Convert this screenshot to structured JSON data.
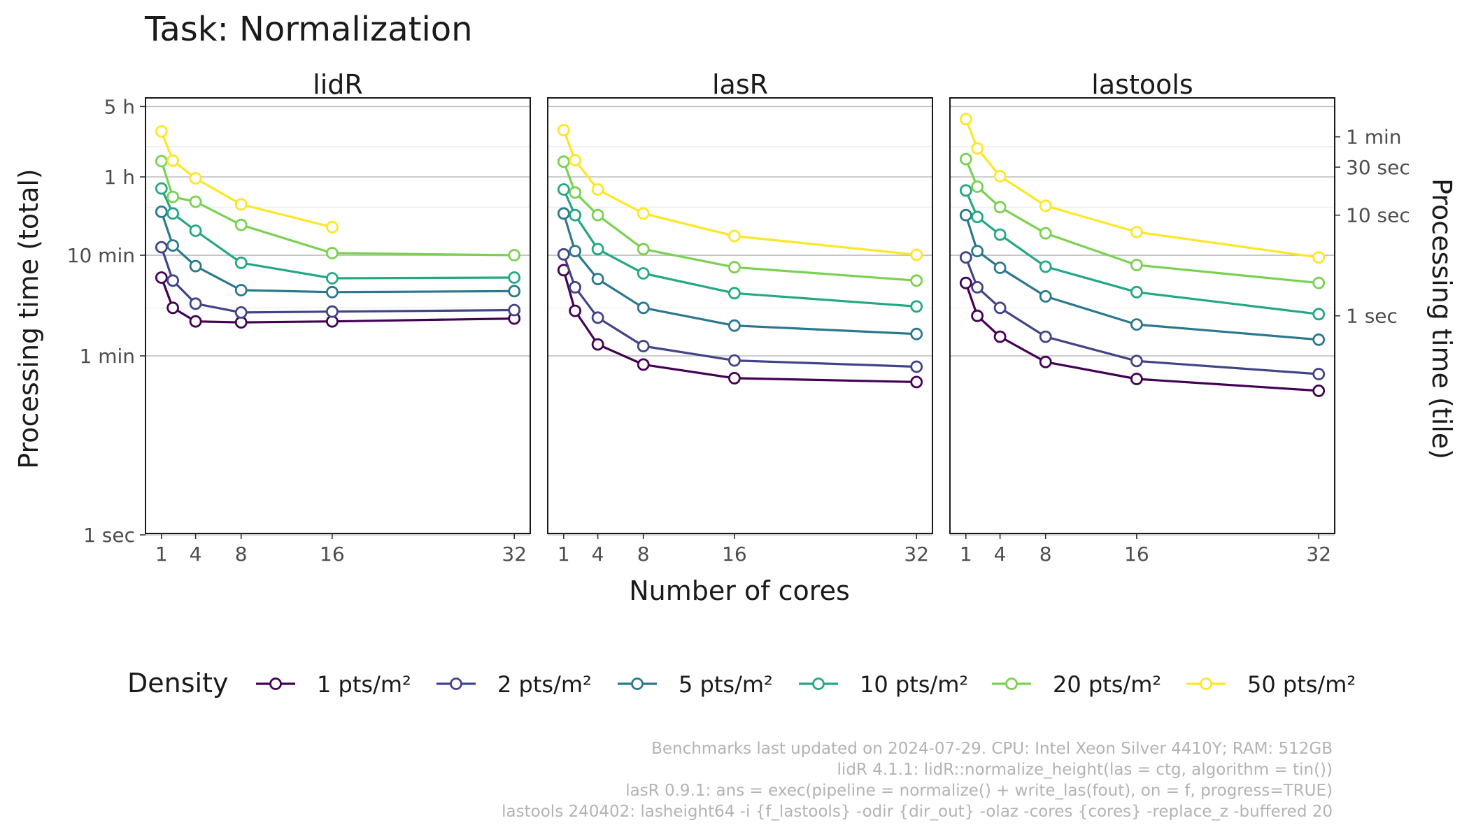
{
  "chart_data": {
    "type": "line",
    "title": "Task: Normalization",
    "xlabel": "Number of cores",
    "ylabel_left": "Processing time (total)",
    "ylabel_right": "Processing time (tile)",
    "y_scale": "log",
    "x_ticks": [
      1,
      4,
      8,
      16,
      32
    ],
    "y_ticks_left": [
      "5 h",
      "1 h",
      "10 min",
      "1 min",
      "1 sec"
    ],
    "y_ticks_right": [
      "1 min",
      "30 sec",
      "10 sec",
      "1 sec"
    ],
    "legend_title": "Density",
    "legend_position": "bottom",
    "grid": true,
    "facets": [
      {
        "name": "lidR",
        "series": [
          {
            "name": "1 pts/m²",
            "x": [
              1,
              2,
              4,
              8,
              16,
              32
            ],
            "y_minutes": [
              6.0,
              3.0,
              2.2,
              2.15,
              2.2,
              2.35
            ]
          },
          {
            "name": "2 pts/m²",
            "x": [
              1,
              2,
              4,
              8,
              16,
              32
            ],
            "y_minutes": [
              12.0,
              5.6,
              3.3,
              2.7,
              2.75,
              2.85
            ]
          },
          {
            "name": "5 pts/m²",
            "x": [
              1,
              2,
              4,
              8,
              16,
              32
            ],
            "y_minutes": [
              27.0,
              12.5,
              7.8,
              4.5,
              4.3,
              4.4
            ]
          },
          {
            "name": "10 pts/m²",
            "x": [
              1,
              2,
              4,
              8,
              16,
              32
            ],
            "y_minutes": [
              46.0,
              26.0,
              17.5,
              8.4,
              5.9,
              6.0
            ]
          },
          {
            "name": "20 pts/m²",
            "x": [
              1,
              2,
              4,
              8,
              16,
              32
            ],
            "y_minutes": [
              86.0,
              38.0,
              34.0,
              20.0,
              10.5,
              10.0
            ]
          },
          {
            "name": "50 pts/m²",
            "x": [
              1,
              2,
              4,
              8,
              16
            ],
            "y_minutes": [
              170.0,
              87.0,
              58.0,
              32.0,
              19.0
            ]
          }
        ]
      },
      {
        "name": "lasR",
        "series": [
          {
            "name": "1 pts/m²",
            "x": [
              1,
              2,
              4,
              8,
              16,
              32
            ],
            "y_minutes": [
              7.1,
              2.8,
              1.3,
              0.82,
              0.6,
              0.55
            ]
          },
          {
            "name": "2 pts/m²",
            "x": [
              1,
              2,
              4,
              8,
              16,
              32
            ],
            "y_minutes": [
              10.2,
              4.8,
              2.4,
              1.25,
              0.9,
              0.78
            ]
          },
          {
            "name": "5 pts/m²",
            "x": [
              1,
              2,
              4,
              8,
              16,
              32
            ],
            "y_minutes": [
              26.0,
              11.0,
              5.8,
              3.0,
              2.0,
              1.65
            ]
          },
          {
            "name": "10 pts/m²",
            "x": [
              1,
              2,
              4,
              8,
              16,
              32
            ],
            "y_minutes": [
              45.0,
              25.0,
              11.5,
              6.6,
              4.2,
              3.1
            ]
          },
          {
            "name": "20 pts/m²",
            "x": [
              1,
              2,
              4,
              8,
              16,
              32
            ],
            "y_minutes": [
              85.0,
              42.0,
              25.0,
              11.5,
              7.6,
              5.6
            ]
          },
          {
            "name": "50 pts/m²",
            "x": [
              1,
              2,
              4,
              8,
              16,
              32
            ],
            "y_minutes": [
              175.0,
              88.0,
              45.0,
              26.0,
              15.5,
              10.1
            ]
          }
        ]
      },
      {
        "name": "lastools",
        "series": [
          {
            "name": "1 pts/m²",
            "x": [
              1,
              2,
              4,
              8,
              16,
              32
            ],
            "y_minutes": [
              5.3,
              2.5,
              1.55,
              0.87,
              0.59,
              0.45
            ]
          },
          {
            "name": "2 pts/m²",
            "x": [
              1,
              2,
              4,
              8,
              16,
              32
            ],
            "y_minutes": [
              9.5,
              4.8,
              3.0,
              1.55,
              0.89,
              0.66
            ]
          },
          {
            "name": "5 pts/m²",
            "x": [
              1,
              2,
              4,
              8,
              16,
              32
            ],
            "y_minutes": [
              25.0,
              11.0,
              7.5,
              3.9,
              2.05,
              1.45
            ]
          },
          {
            "name": "10 pts/m²",
            "x": [
              1,
              2,
              4,
              8,
              16,
              32
            ],
            "y_minutes": [
              44.0,
              24.0,
              16.0,
              7.7,
              4.3,
              2.6
            ]
          },
          {
            "name": "20 pts/m²",
            "x": [
              1,
              2,
              4,
              8,
              16,
              32
            ],
            "y_minutes": [
              90.0,
              48.0,
              30.0,
              16.5,
              8.0,
              5.3
            ]
          },
          {
            "name": "50 pts/m²",
            "x": [
              1,
              2,
              4,
              8,
              16,
              32
            ],
            "y_minutes": [
              225.0,
              115.0,
              61.0,
              31.0,
              17.0,
              9.5
            ]
          }
        ]
      }
    ],
    "colors": [
      "#440154",
      "#414487",
      "#2a788e",
      "#22a884",
      "#7ad151",
      "#fde725"
    ],
    "caption": [
      "Benchmarks last updated on 2024-07-29. CPU: Intel Xeon Silver 4410Y; RAM: 512GB",
      "lidR 4.1.1: lidR::normalize_height(las = ctg, algorithm = tin())",
      "lasR 0.9.1: ans = exec(pipeline = normalize() + write_las(fout), on = f, progress=TRUE)",
      "lastools 240402: lasheight64 -i {f_lastools} -odir {dir_out} -olaz -cores {cores} -replace_z -buffered 20"
    ]
  }
}
